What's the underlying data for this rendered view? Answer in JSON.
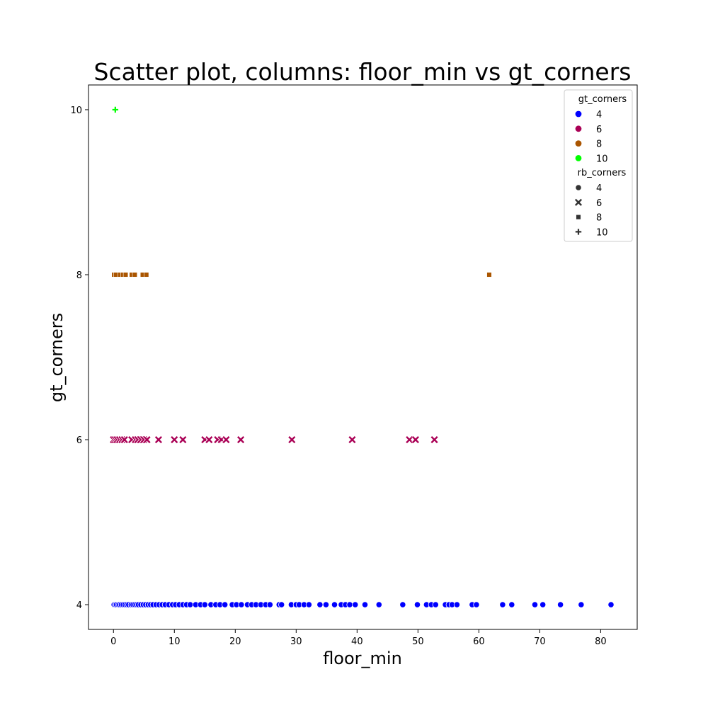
{
  "chart_data": {
    "type": "scatter",
    "title": "Scatter plot, columns: floor_min vs gt_corners",
    "xlabel": "floor_min",
    "ylabel": "gt_corners",
    "xlim": [
      -4.1,
      86.0
    ],
    "ylim": [
      3.7,
      10.3
    ],
    "xticks": [
      0,
      10,
      20,
      30,
      40,
      50,
      60,
      70,
      80
    ],
    "yticks": [
      4,
      6,
      8,
      10
    ],
    "grid": false,
    "legend": {
      "placement": "top-right",
      "hue_title": "gt_corners",
      "style_title": "rb_corners",
      "hue_entries": [
        {
          "label": "4",
          "color": "#0000ff"
        },
        {
          "label": "6",
          "color": "#aa0055"
        },
        {
          "label": "8",
          "color": "#aa5500"
        },
        {
          "label": "10",
          "color": "#00ff00"
        }
      ],
      "style_entries": [
        {
          "label": "4",
          "marker": "circle"
        },
        {
          "label": "6",
          "marker": "x"
        },
        {
          "label": "8",
          "marker": "square"
        },
        {
          "label": "10",
          "marker": "plus"
        }
      ]
    },
    "series": [
      {
        "gt_corners": 4,
        "rb_corners": 4,
        "color": "#0000ff",
        "marker": "circle",
        "points": [
          [
            0.1,
            4
          ],
          [
            0.3,
            4
          ],
          [
            0.5,
            4
          ],
          [
            0.8,
            4
          ],
          [
            1.0,
            4
          ],
          [
            1.3,
            4
          ],
          [
            1.6,
            4
          ],
          [
            1.9,
            4
          ],
          [
            2.2,
            4
          ],
          [
            2.5,
            4
          ],
          [
            2.9,
            4
          ],
          [
            3.2,
            4
          ],
          [
            3.5,
            4
          ],
          [
            3.8,
            4
          ],
          [
            4.1,
            4
          ],
          [
            4.5,
            4
          ],
          [
            4.9,
            4
          ],
          [
            5.3,
            4
          ],
          [
            5.7,
            4
          ],
          [
            6.1,
            4
          ],
          [
            6.5,
            4
          ],
          [
            7.0,
            4
          ],
          [
            7.5,
            4
          ],
          [
            8.0,
            4
          ],
          [
            8.5,
            4
          ],
          [
            9.1,
            4
          ],
          [
            9.7,
            4
          ],
          [
            10.2,
            4
          ],
          [
            10.8,
            4
          ],
          [
            11.4,
            4
          ],
          [
            12.0,
            4
          ],
          [
            12.6,
            4
          ],
          [
            13.5,
            4
          ],
          [
            14.3,
            4
          ],
          [
            15.0,
            4
          ],
          [
            16.0,
            4
          ],
          [
            16.8,
            4
          ],
          [
            17.5,
            4
          ],
          [
            18.3,
            4
          ],
          [
            19.5,
            4
          ],
          [
            20.2,
            4
          ],
          [
            21.0,
            4
          ],
          [
            22.0,
            4
          ],
          [
            22.7,
            4
          ],
          [
            23.4,
            4
          ],
          [
            24.2,
            4
          ],
          [
            25.0,
            4
          ],
          [
            25.7,
            4
          ],
          [
            27.2,
            4
          ],
          [
            27.6,
            4
          ],
          [
            29.2,
            4
          ],
          [
            30.0,
            4
          ],
          [
            30.5,
            4
          ],
          [
            31.3,
            4
          ],
          [
            32.1,
            4
          ],
          [
            33.9,
            4
          ],
          [
            34.9,
            4
          ],
          [
            36.3,
            4
          ],
          [
            37.4,
            4
          ],
          [
            38.1,
            4
          ],
          [
            38.8,
            4
          ],
          [
            39.7,
            4
          ],
          [
            41.3,
            4
          ],
          [
            43.6,
            4
          ],
          [
            47.5,
            4
          ],
          [
            49.9,
            4
          ],
          [
            51.4,
            4
          ],
          [
            52.2,
            4
          ],
          [
            52.9,
            4
          ],
          [
            54.5,
            4
          ],
          [
            55.1,
            4
          ],
          [
            55.6,
            4
          ],
          [
            56.4,
            4
          ],
          [
            58.9,
            4
          ],
          [
            59.6,
            4
          ],
          [
            63.9,
            4
          ],
          [
            65.4,
            4
          ],
          [
            69.2,
            4
          ],
          [
            70.5,
            4
          ],
          [
            73.4,
            4
          ],
          [
            76.8,
            4
          ],
          [
            81.7,
            4
          ]
        ]
      },
      {
        "gt_corners": 6,
        "rb_corners": 6,
        "color": "#aa0055",
        "marker": "x",
        "points": [
          [
            0.0,
            6
          ],
          [
            0.3,
            6
          ],
          [
            0.6,
            6
          ],
          [
            1.0,
            6
          ],
          [
            1.4,
            6
          ],
          [
            1.8,
            6
          ],
          [
            3.0,
            6
          ],
          [
            3.6,
            6
          ],
          [
            4.0,
            6
          ],
          [
            4.5,
            6
          ],
          [
            5.0,
            6
          ],
          [
            5.5,
            6
          ],
          [
            7.4,
            6
          ],
          [
            10.0,
            6
          ],
          [
            11.4,
            6
          ],
          [
            15.0,
            6
          ],
          [
            15.7,
            6
          ],
          [
            17.1,
            6
          ],
          [
            17.7,
            6
          ],
          [
            18.5,
            6
          ],
          [
            20.9,
            6
          ],
          [
            29.3,
            6
          ],
          [
            39.2,
            6
          ],
          [
            48.6,
            6
          ],
          [
            49.6,
            6
          ],
          [
            52.7,
            6
          ]
        ]
      },
      {
        "gt_corners": 8,
        "rb_corners": 8,
        "color": "#aa5500",
        "marker": "square",
        "points": [
          [
            0.1,
            8
          ],
          [
            0.4,
            8
          ],
          [
            1.1,
            8
          ],
          [
            1.6,
            8
          ],
          [
            2.0,
            8
          ],
          [
            3.0,
            8
          ],
          [
            3.5,
            8
          ],
          [
            4.8,
            8
          ],
          [
            5.4,
            8
          ],
          [
            61.7,
            8
          ]
        ]
      },
      {
        "gt_corners": 10,
        "rb_corners": 10,
        "color": "#00ff00",
        "marker": "plus",
        "points": [
          [
            0.3,
            10
          ]
        ]
      }
    ]
  }
}
